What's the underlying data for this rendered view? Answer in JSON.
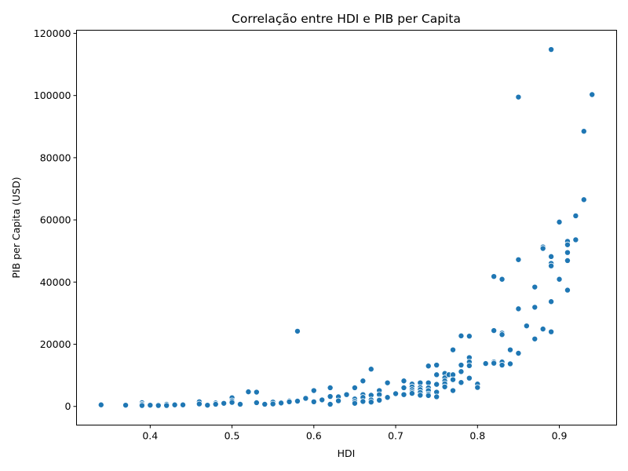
{
  "chart_data": {
    "type": "scatter",
    "title": "Correlação entre HDI e PIB per Capita",
    "xlabel": "HDI",
    "ylabel": "PIB per Capita (USD)",
    "xlim": [
      0.31,
      0.97
    ],
    "ylim": [
      -6000,
      121000
    ],
    "xticks": [
      0.4,
      0.5,
      0.6,
      0.7,
      0.8,
      0.9
    ],
    "xtick_labels": [
      "0.4",
      "0.5",
      "0.6",
      "0.7",
      "0.8",
      "0.9"
    ],
    "yticks": [
      0,
      20000,
      40000,
      60000,
      80000,
      100000,
      120000
    ],
    "ytick_labels": [
      "0",
      "20000",
      "40000",
      "60000",
      "80000",
      "100000",
      "120000"
    ],
    "grid": false,
    "point_color": "#1f77b4",
    "points": [
      [
        0.34,
        500
      ],
      [
        0.37,
        400
      ],
      [
        0.39,
        1200
      ],
      [
        0.39,
        700
      ],
      [
        0.39,
        300
      ],
      [
        0.4,
        400
      ],
      [
        0.41,
        500
      ],
      [
        0.41,
        300
      ],
      [
        0.42,
        700
      ],
      [
        0.42,
        300
      ],
      [
        0.43,
        500
      ],
      [
        0.44,
        500
      ],
      [
        0.46,
        1500
      ],
      [
        0.46,
        800
      ],
      [
        0.47,
        400
      ],
      [
        0.48,
        1100
      ],
      [
        0.48,
        700
      ],
      [
        0.49,
        1000
      ],
      [
        0.5,
        2800
      ],
      [
        0.5,
        1800
      ],
      [
        0.5,
        1300
      ],
      [
        0.51,
        700
      ],
      [
        0.52,
        4700
      ],
      [
        0.53,
        4600
      ],
      [
        0.53,
        1200
      ],
      [
        0.54,
        700
      ],
      [
        0.55,
        1400
      ],
      [
        0.55,
        800
      ],
      [
        0.56,
        1100
      ],
      [
        0.57,
        1800
      ],
      [
        0.57,
        1500
      ],
      [
        0.58,
        1700
      ],
      [
        0.58,
        24200
      ],
      [
        0.59,
        2600
      ],
      [
        0.6,
        5100
      ],
      [
        0.6,
        1500
      ],
      [
        0.61,
        2100
      ],
      [
        0.62,
        6000
      ],
      [
        0.62,
        3200
      ],
      [
        0.62,
        700
      ],
      [
        0.63,
        3100
      ],
      [
        0.63,
        1800
      ],
      [
        0.64,
        3800
      ],
      [
        0.65,
        6000
      ],
      [
        0.65,
        2400
      ],
      [
        0.65,
        1600
      ],
      [
        0.65,
        1000
      ],
      [
        0.66,
        8200
      ],
      [
        0.66,
        3800
      ],
      [
        0.66,
        2900
      ],
      [
        0.66,
        1600
      ],
      [
        0.67,
        12000
      ],
      [
        0.67,
        3600
      ],
      [
        0.67,
        2100
      ],
      [
        0.67,
        1400
      ],
      [
        0.68,
        5100
      ],
      [
        0.68,
        3800
      ],
      [
        0.68,
        2300
      ],
      [
        0.68,
        2000
      ],
      [
        0.69,
        7600
      ],
      [
        0.69,
        2900
      ],
      [
        0.7,
        4100
      ],
      [
        0.71,
        8200
      ],
      [
        0.71,
        6000
      ],
      [
        0.71,
        3800
      ],
      [
        0.72,
        7200
      ],
      [
        0.72,
        6300
      ],
      [
        0.72,
        5400
      ],
      [
        0.72,
        4700
      ],
      [
        0.72,
        4200
      ],
      [
        0.73,
        7600
      ],
      [
        0.73,
        6100
      ],
      [
        0.73,
        5400
      ],
      [
        0.73,
        4500
      ],
      [
        0.73,
        3600
      ],
      [
        0.74,
        13000
      ],
      [
        0.74,
        7600
      ],
      [
        0.74,
        6000
      ],
      [
        0.74,
        5100
      ],
      [
        0.74,
        4000
      ],
      [
        0.74,
        3500
      ],
      [
        0.75,
        13300
      ],
      [
        0.75,
        10200
      ],
      [
        0.75,
        7100
      ],
      [
        0.75,
        4600
      ],
      [
        0.75,
        3100
      ],
      [
        0.76,
        10600
      ],
      [
        0.76,
        9200
      ],
      [
        0.76,
        8200
      ],
      [
        0.76,
        7300
      ],
      [
        0.76,
        6300
      ],
      [
        0.765,
        10200
      ],
      [
        0.77,
        18200
      ],
      [
        0.77,
        10200
      ],
      [
        0.77,
        8600
      ],
      [
        0.77,
        5100
      ],
      [
        0.78,
        22700
      ],
      [
        0.78,
        13300
      ],
      [
        0.78,
        11200
      ],
      [
        0.78,
        7700
      ],
      [
        0.79,
        22600
      ],
      [
        0.79,
        15700
      ],
      [
        0.79,
        14300
      ],
      [
        0.79,
        13100
      ],
      [
        0.79,
        9100
      ],
      [
        0.8,
        7200
      ],
      [
        0.8,
        6100
      ],
      [
        0.81,
        13800
      ],
      [
        0.82,
        41800
      ],
      [
        0.82,
        24400
      ],
      [
        0.82,
        14300
      ],
      [
        0.82,
        13900
      ],
      [
        0.83,
        40900
      ],
      [
        0.83,
        23600
      ],
      [
        0.83,
        23100
      ],
      [
        0.83,
        14300
      ],
      [
        0.83,
        13300
      ],
      [
        0.84,
        18200
      ],
      [
        0.84,
        13700
      ],
      [
        0.85,
        99500
      ],
      [
        0.85,
        47200
      ],
      [
        0.85,
        31400
      ],
      [
        0.85,
        17100
      ],
      [
        0.86,
        25900
      ],
      [
        0.87,
        38400
      ],
      [
        0.87,
        31900
      ],
      [
        0.87,
        21700
      ],
      [
        0.88,
        51300
      ],
      [
        0.88,
        50800
      ],
      [
        0.88,
        24900
      ],
      [
        0.89,
        114800
      ],
      [
        0.89,
        48200
      ],
      [
        0.89,
        46000
      ],
      [
        0.89,
        45200
      ],
      [
        0.89,
        33700
      ],
      [
        0.89,
        24000
      ],
      [
        0.9,
        59300
      ],
      [
        0.9,
        40900
      ],
      [
        0.91,
        53100
      ],
      [
        0.91,
        52000
      ],
      [
        0.91,
        49500
      ],
      [
        0.91,
        46900
      ],
      [
        0.91,
        37400
      ],
      [
        0.92,
        61300
      ],
      [
        0.92,
        53600
      ],
      [
        0.93,
        88500
      ],
      [
        0.93,
        66500
      ],
      [
        0.94,
        100300
      ]
    ]
  }
}
